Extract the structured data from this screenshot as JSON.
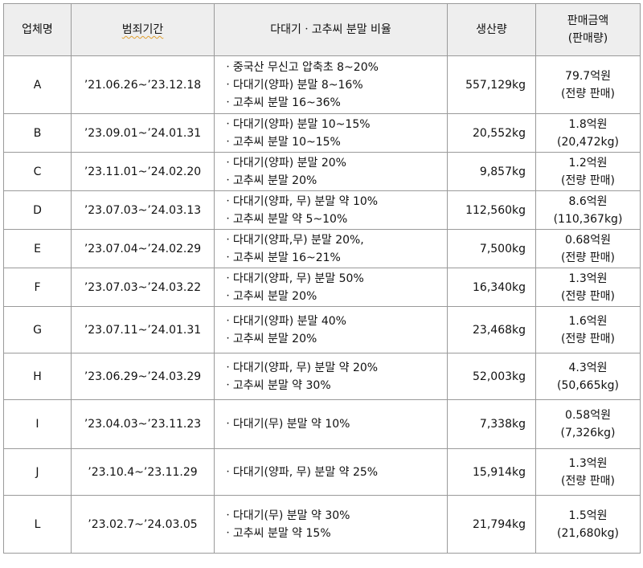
{
  "headers": {
    "company": "업체명",
    "period": "범죄기간",
    "ratio": "다대기ㆍ고추씨 분말 비율",
    "production": "생산량",
    "sales_line1": "판매금액",
    "sales_line2": "(판매량)"
  },
  "rows": [
    {
      "company": "A",
      "period": "’21.06.26~’23.12.18",
      "ratio": [
        "ㆍ중국산 무신고 압축초 8~20%",
        "ㆍ다대기(양파) 분말 8~16%",
        "ㆍ고추씨 분말 16~36%"
      ],
      "production": "557,129kg",
      "sales_amount": "79.7억원",
      "sales_qty": "(전량 판매)"
    },
    {
      "company": "B",
      "period": "’23.09.01~’24.01.31",
      "ratio": [
        "ㆍ다대기(양파) 분말 10~15%",
        "ㆍ고추씨 분말 10~15%"
      ],
      "production": "20,552kg",
      "sales_amount": "1.8억원",
      "sales_qty": "(20,472kg)"
    },
    {
      "company": "C",
      "period": "’23.11.01~’24.02.20",
      "ratio": [
        "ㆍ다대기(양파) 분말 20%",
        "ㆍ고추씨 분말 20%"
      ],
      "production": "9,857kg",
      "sales_amount": "1.2억원",
      "sales_qty": "(전량 판매)"
    },
    {
      "company": "D",
      "period": "’23.07.03~’24.03.13",
      "ratio": [
        "ㆍ다대기(양파, 무) 분말 약 10%",
        "ㆍ고추씨 분말 약 5~10%"
      ],
      "production": "112,560kg",
      "sales_amount": "8.6억원",
      "sales_qty": "(110,367kg)"
    },
    {
      "company": "E",
      "period": "’23.07.04~’24.02.29",
      "ratio": [
        "ㆍ다대기(양파,무) 분말 20%,",
        "ㆍ고추씨 분말 16~21%"
      ],
      "production": "7,500kg",
      "sales_amount": "0.68억원",
      "sales_qty": "(전량 판매)"
    },
    {
      "company": "F",
      "period": "’23.07.03~’24.03.22",
      "ratio": [
        "ㆍ다대기(양파, 무) 분말 50%",
        "ㆍ고추씨 분말 20%"
      ],
      "production": "16,340kg",
      "sales_amount": "1.3억원",
      "sales_qty": "(전량 판매)"
    },
    {
      "company": "G",
      "period": "’23.07.11~’24.01.31",
      "ratio": [
        "ㆍ다대기(양파) 분말 40%",
        "ㆍ고추씨 분말 20%"
      ],
      "production": "23,468kg",
      "sales_amount": "1.6억원",
      "sales_qty": "(전량 판매)"
    },
    {
      "company": "H",
      "period": "’23.06.29~’24.03.29",
      "ratio": [
        "ㆍ다대기(양파, 무) 분말 약 20%",
        "ㆍ고추씨 분말 약 30%"
      ],
      "production": "52,003kg",
      "sales_amount": "4.3억원",
      "sales_qty": "(50,665kg)"
    },
    {
      "company": "I",
      "period": "’23.04.03~’23.11.23",
      "ratio": [
        "ㆍ다대기(무) 분말 약 10%"
      ],
      "production": "7,338kg",
      "sales_amount": "0.58억원",
      "sales_qty": "(7,326kg)"
    },
    {
      "company": "J",
      "period": "’23.10.4~’23.11.29",
      "ratio": [
        "ㆍ다대기(양파, 무) 분말 약 25%"
      ],
      "production": "15,914kg",
      "sales_amount": "1.3억원",
      "sales_qty": "(전량 판매)"
    },
    {
      "company": "L",
      "period": "’23.02.7~’24.03.05",
      "ratio": [
        "ㆍ다대기(무) 분말 약 30%",
        "ㆍ고추씨 분말 약 15%"
      ],
      "production": "21,794kg",
      "sales_amount": "1.5억원",
      "sales_qty": "(21,680kg)"
    }
  ]
}
